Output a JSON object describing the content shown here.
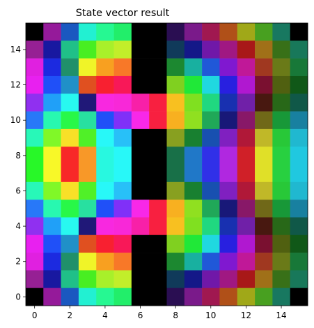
{
  "chart_data": {
    "type": "heatmap",
    "title": "State vector result",
    "xlabel": "",
    "ylabel": "",
    "xlim": [
      -0.5,
      15.5
    ],
    "ylim": [
      -0.5,
      15.5
    ],
    "xticks": [
      0,
      2,
      4,
      6,
      8,
      10,
      12,
      14
    ],
    "yticks": [
      0,
      2,
      4,
      6,
      8,
      10,
      12,
      14
    ],
    "grid": false,
    "rows_top_to_bottom": [
      [
        "#000000",
        "#951a9a",
        "#1a58c0",
        "#22f0d2",
        "#26f892",
        "#22ee6a",
        "#000000",
        "#000000",
        "#2a0e52",
        "#7a1a8a",
        "#a01850",
        "#b05018",
        "#a0a818",
        "#48a020",
        "#187860",
        "#000000"
      ],
      [
        "#962094",
        "#1818a0",
        "#20c088",
        "#48ee22",
        "#a8f02a",
        "#c2ee2a",
        "#000000",
        "#000000",
        "#103a5a",
        "#141888",
        "#7018a8",
        "#a01882",
        "#a81818",
        "#a07018",
        "#387018",
        "#18785a"
      ],
      [
        "#e020e0",
        "#1c2ae0",
        "#20906a",
        "#f0f428",
        "#f8a020",
        "#f87828",
        "#000000",
        "#000000",
        "#1c8830",
        "#18b0a0",
        "#2058d8",
        "#8018d0",
        "#c01898",
        "#a03820",
        "#6a7a18",
        "#187838"
      ],
      [
        "#e820f0",
        "#2050f8",
        "#2090c8",
        "#e05020",
        "#f82030",
        "#f81858",
        "#000000",
        "#000000",
        "#80d020",
        "#20e838",
        "#20d8e0",
        "#2820e0",
        "#b018d0",
        "#7a1030",
        "#506010",
        "#105818"
      ],
      [
        "#9030f0",
        "#20a0f8",
        "#28f8f0",
        "#201878",
        "#f828e0",
        "#f828d8",
        "#f820a8",
        "#f82040",
        "#f8c020",
        "#80e020",
        "#20d880",
        "#1830b0",
        "#7020a8",
        "#481810",
        "#286818",
        "#105848"
      ],
      [
        "#2878f8",
        "#28f8b0",
        "#28f848",
        "#28e0a0",
        "#2050f8",
        "#8030f8",
        "#f828e8",
        "#f82040",
        "#f8b020",
        "#90e020",
        "#20a858",
        "#181878",
        "#881868",
        "#706818",
        "#189838",
        "#1880a0"
      ],
      [
        "#28f8b8",
        "#80f828",
        "#f8e028",
        "#50f028",
        "#28f8f8",
        "#28c0f8",
        "#000000",
        "#000000",
        "#88a020",
        "#188030",
        "#1850b0",
        "#8020c0",
        "#b01838",
        "#c0b828",
        "#28c838",
        "#20b8d0"
      ],
      [
        "#28f828",
        "#f8f828",
        "#f82828",
        "#f89828",
        "#28f8e0",
        "#28f8f8",
        "#000000",
        "#000000",
        "#187048",
        "#2078c8",
        "#3030e8",
        "#b028e0",
        "#d02028",
        "#e0e028",
        "#28d040",
        "#20c8e0"
      ],
      [
        "#28f828",
        "#f8f828",
        "#f82828",
        "#f89828",
        "#28f8e0",
        "#28f8f8",
        "#000000",
        "#000000",
        "#187048",
        "#2078c8",
        "#3030e8",
        "#b028e0",
        "#d02028",
        "#e0e028",
        "#28d040",
        "#20c8e0"
      ],
      [
        "#28f8b8",
        "#80f828",
        "#f8e028",
        "#50f028",
        "#28f8f8",
        "#28c0f8",
        "#000000",
        "#000000",
        "#88a020",
        "#188030",
        "#1850b0",
        "#8020c0",
        "#b01838",
        "#c0b828",
        "#28c838",
        "#20b8d0"
      ],
      [
        "#2878f8",
        "#28f8b0",
        "#28f848",
        "#28e0a0",
        "#2050f8",
        "#8030f8",
        "#f828e8",
        "#f82040",
        "#f8b020",
        "#90e020",
        "#20a858",
        "#181878",
        "#881868",
        "#706818",
        "#189838",
        "#1880a0"
      ],
      [
        "#9030f0",
        "#20a0f8",
        "#28f8f0",
        "#201878",
        "#f828e0",
        "#f828d8",
        "#f820a8",
        "#f82040",
        "#f8c020",
        "#80e020",
        "#20d880",
        "#1830b0",
        "#7020a8",
        "#481810",
        "#286818",
        "#105848"
      ],
      [
        "#e820f0",
        "#2050f8",
        "#2090c8",
        "#e05020",
        "#f82030",
        "#f81858",
        "#000000",
        "#000000",
        "#80d020",
        "#20e838",
        "#20d8e0",
        "#2820e0",
        "#b018d0",
        "#7a1030",
        "#506010",
        "#105818"
      ],
      [
        "#e020e0",
        "#1c2ae0",
        "#20906a",
        "#f0f428",
        "#f8a020",
        "#f87828",
        "#000000",
        "#000000",
        "#1c8830",
        "#18b0a0",
        "#2058d8",
        "#8018d0",
        "#c01898",
        "#a03820",
        "#6a7a18",
        "#187838"
      ],
      [
        "#962094",
        "#1818a0",
        "#20c088",
        "#48ee22",
        "#a8f02a",
        "#c2ee2a",
        "#000000",
        "#000000",
        "#103a5a",
        "#141888",
        "#7018a8",
        "#a01882",
        "#a81818",
        "#a07018",
        "#387018",
        "#18785a"
      ],
      [
        "#000000",
        "#951a9a",
        "#1a58c0",
        "#22f0d2",
        "#26f892",
        "#22ee6a",
        "#000000",
        "#000000",
        "#2a0e52",
        "#7a1a8a",
        "#a01850",
        "#b05018",
        "#a0a818",
        "#48a020",
        "#187860",
        "#000000"
      ]
    ]
  }
}
